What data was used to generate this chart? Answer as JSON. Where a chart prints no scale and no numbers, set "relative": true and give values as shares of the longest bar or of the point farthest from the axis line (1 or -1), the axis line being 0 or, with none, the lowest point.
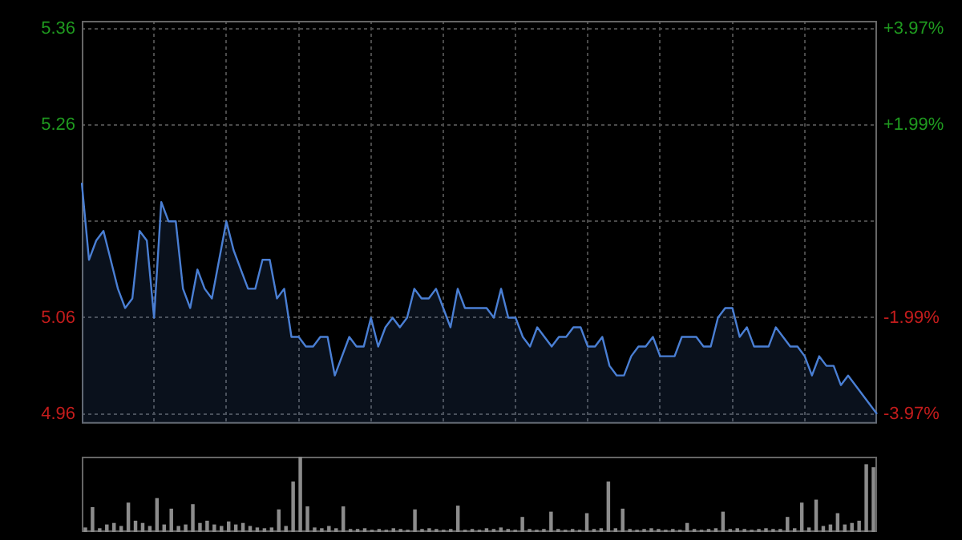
{
  "chart_data": [
    {
      "type": "area",
      "categories": [
        null,
        null,
        null,
        null,
        null,
        null,
        null,
        null,
        null,
        null,
        null,
        null,
        null,
        null,
        null,
        null,
        null,
        null,
        null,
        null,
        null,
        null,
        null,
        null,
        null,
        null,
        null,
        null,
        null,
        null,
        null,
        null,
        null,
        null,
        null,
        null,
        null,
        null,
        null,
        null,
        null,
        null,
        null,
        null,
        null,
        null,
        null,
        null,
        null,
        null,
        null,
        null,
        null,
        null,
        null,
        null,
        null,
        null,
        null,
        null,
        null,
        null,
        null,
        null,
        null,
        null,
        null,
        null,
        null,
        null,
        null,
        null,
        null,
        null,
        null,
        null,
        null,
        null,
        null,
        null,
        null,
        null,
        null,
        null,
        null,
        null,
        null,
        null,
        null,
        null,
        null,
        null,
        null,
        null,
        null,
        null,
        null,
        null,
        null,
        null,
        null,
        null,
        null,
        null,
        null,
        null,
        null,
        null,
        null,
        null,
        null
      ],
      "series": [
        {
          "color": "#4a7fd4",
          "values": [
            5.2,
            5.12,
            5.14,
            5.15,
            5.12,
            5.09,
            5.07,
            5.08,
            5.15,
            5.14,
            5.06,
            5.18,
            5.16,
            5.16,
            5.09,
            5.07,
            5.11,
            5.09,
            5.08,
            5.12,
            5.16,
            5.13,
            5.11,
            5.09,
            5.09,
            5.12,
            5.12,
            5.08,
            5.09,
            5.04,
            5.04,
            5.03,
            5.03,
            5.04,
            5.04,
            5.0,
            5.02,
            5.04,
            5.03,
            5.03,
            5.06,
            5.03,
            5.05,
            5.06,
            5.05,
            5.06,
            5.09,
            5.08,
            5.08,
            5.09,
            5.07,
            5.05,
            5.09,
            5.07,
            5.07,
            5.07,
            5.07,
            5.06,
            5.09,
            5.06,
            5.06,
            5.04,
            5.03,
            5.05,
            5.04,
            5.03,
            5.04,
            5.04,
            5.05,
            5.05,
            5.03,
            5.03,
            5.04,
            5.01,
            5.0,
            5.0,
            5.02,
            5.03,
            5.03,
            5.04,
            5.02,
            5.02,
            5.02,
            5.04,
            5.04,
            5.04,
            5.03,
            5.03,
            5.06,
            5.07,
            5.07,
            5.04,
            5.05,
            5.03,
            5.03,
            5.03,
            5.05,
            5.04,
            5.03,
            5.03,
            5.02,
            5.0,
            5.02,
            5.01,
            5.01,
            4.99,
            5.0,
            4.99,
            4.98,
            4.97,
            4.96
          ]
        }
      ],
      "ylim": [
        4.95,
        5.368
      ],
      "yticks": [
        4.96,
        5.06,
        {
          "value": 5.16,
          "label": null
        },
        5.26,
        5.36
      ],
      "y2lim": [
        -4.17,
        4.13
      ],
      "y2ticks": [
        {
          "value": -3.97,
          "label": "-3.97%"
        },
        {
          "value": -1.99,
          "label": "-1.99%"
        },
        {
          "value": 1.99,
          "label": "+1.99%"
        },
        {
          "value": 3.97,
          "label": "+3.97%"
        }
      ],
      "grid": true
    },
    {
      "type": "bar",
      "relative": true,
      "categories": [
        null,
        null,
        null,
        null,
        null,
        null,
        null,
        null,
        null,
        null,
        null,
        null,
        null,
        null,
        null,
        null,
        null,
        null,
        null,
        null,
        null,
        null,
        null,
        null,
        null,
        null,
        null,
        null,
        null,
        null,
        null,
        null,
        null,
        null,
        null,
        null,
        null,
        null,
        null,
        null,
        null,
        null,
        null,
        null,
        null,
        null,
        null,
        null,
        null,
        null,
        null,
        null,
        null,
        null,
        null,
        null,
        null,
        null,
        null,
        null,
        null,
        null,
        null,
        null,
        null,
        null,
        null,
        null,
        null,
        null,
        null,
        null,
        null,
        null,
        null,
        null,
        null,
        null,
        null,
        null,
        null,
        null,
        null,
        null,
        null,
        null,
        null,
        null,
        null,
        null,
        null,
        null,
        null,
        null,
        null,
        null,
        null,
        null,
        null,
        null,
        null,
        null,
        null,
        null,
        null,
        null,
        null,
        null,
        null,
        null,
        null
      ],
      "color": "#8c8c8c",
      "values": [
        0.06,
        0.33,
        0.05,
        0.1,
        0.12,
        0.08,
        0.39,
        0.15,
        0.12,
        0.08,
        0.45,
        0.1,
        0.31,
        0.08,
        0.1,
        0.37,
        0.12,
        0.15,
        0.1,
        0.08,
        0.14,
        0.1,
        0.12,
        0.08,
        0.06,
        0.05,
        0.06,
        0.3,
        0.08,
        0.67,
        1.0,
        0.34,
        0.06,
        0.05,
        0.08,
        0.05,
        0.34,
        0.04,
        0.04,
        0.05,
        0.03,
        0.04,
        0.03,
        0.05,
        0.04,
        0.03,
        0.3,
        0.04,
        0.05,
        0.04,
        0.03,
        0.04,
        0.35,
        0.03,
        0.04,
        0.03,
        0.05,
        0.04,
        0.06,
        0.04,
        0.03,
        0.2,
        0.04,
        0.03,
        0.04,
        0.27,
        0.04,
        0.03,
        0.04,
        0.03,
        0.25,
        0.04,
        0.05,
        0.67,
        0.05,
        0.31,
        0.04,
        0.03,
        0.04,
        0.05,
        0.04,
        0.03,
        0.04,
        0.03,
        0.12,
        0.04,
        0.03,
        0.04,
        0.05,
        0.27,
        0.04,
        0.05,
        0.04,
        0.03,
        0.04,
        0.05,
        0.04,
        0.04,
        0.2,
        0.05,
        0.39,
        0.06,
        0.43,
        0.08,
        0.1,
        0.25,
        0.1,
        0.12,
        0.15,
        0.9,
        0.86
      ]
    }
  ]
}
